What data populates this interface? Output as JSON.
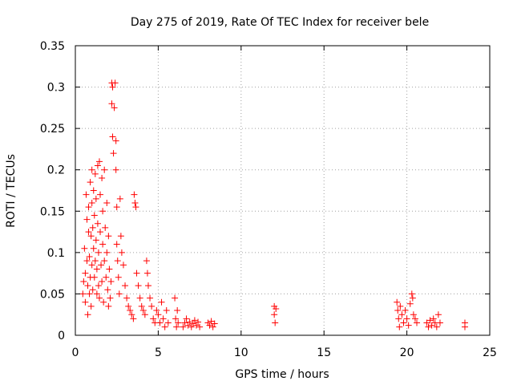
{
  "chart_data": {
    "type": "scatter",
    "title": "Day 275 of 2019, Rate Of TEC Index for receiver bele",
    "xlabel": "GPS time / hours",
    "ylabel": "ROTI / TECUs",
    "xlim": [
      0,
      25
    ],
    "ylim": [
      0,
      0.35
    ],
    "grid": true,
    "marker": "plus",
    "color": "#ff0000",
    "x_ticks": [
      {
        "value": 0,
        "label": "0"
      },
      {
        "value": 5,
        "label": "5"
      },
      {
        "value": 10,
        "label": "10"
      },
      {
        "value": 15,
        "label": "15"
      },
      {
        "value": 20,
        "label": "20"
      },
      {
        "value": 25,
        "label": "25"
      }
    ],
    "y_ticks": [
      {
        "value": 0,
        "label": "0"
      },
      {
        "value": 0.05,
        "label": "0.05"
      },
      {
        "value": 0.1,
        "label": "0.1"
      },
      {
        "value": 0.15,
        "label": "0.15"
      },
      {
        "value": 0.2,
        "label": "0.2"
      },
      {
        "value": 0.25,
        "label": "0.25"
      },
      {
        "value": 0.3,
        "label": "0.3"
      },
      {
        "value": 0.35,
        "label": "0.35"
      }
    ],
    "series": [
      {
        "name": "ROTI",
        "points": [
          [
            0.45,
            0.05
          ],
          [
            0.5,
            0.065
          ],
          [
            0.55,
            0.105
          ],
          [
            0.6,
            0.04
          ],
          [
            0.6,
            0.075
          ],
          [
            0.65,
            0.17
          ],
          [
            0.7,
            0.14
          ],
          [
            0.7,
            0.09
          ],
          [
            0.75,
            0.06
          ],
          [
            0.75,
            0.025
          ],
          [
            0.8,
            0.125
          ],
          [
            0.8,
            0.155
          ],
          [
            0.85,
            0.05
          ],
          [
            0.85,
            0.095
          ],
          [
            0.9,
            0.185
          ],
          [
            0.9,
            0.07
          ],
          [
            0.95,
            0.12
          ],
          [
            0.95,
            0.035
          ],
          [
            1.0,
            0.2
          ],
          [
            1.0,
            0.16
          ],
          [
            1.0,
            0.085
          ],
          [
            1.05,
            0.13
          ],
          [
            1.05,
            0.055
          ],
          [
            1.1,
            0.175
          ],
          [
            1.1,
            0.105
          ],
          [
            1.15,
            0.145
          ],
          [
            1.15,
            0.07
          ],
          [
            1.2,
            0.195
          ],
          [
            1.2,
            0.09
          ],
          [
            1.25,
            0.165
          ],
          [
            1.25,
            0.115
          ],
          [
            1.3,
            0.05
          ],
          [
            1.3,
            0.08
          ],
          [
            1.35,
            0.205
          ],
          [
            1.35,
            0.135
          ],
          [
            1.4,
            0.1
          ],
          [
            1.4,
            0.06
          ],
          [
            1.45,
            0.21
          ],
          [
            1.45,
            0.045
          ],
          [
            1.5,
            0.17
          ],
          [
            1.5,
            0.125
          ],
          [
            1.55,
            0.085
          ],
          [
            1.6,
            0.19
          ],
          [
            1.6,
            0.065
          ],
          [
            1.65,
            0.15
          ],
          [
            1.65,
            0.11
          ],
          [
            1.7,
            0.04
          ],
          [
            1.75,
            0.2
          ],
          [
            1.75,
            0.09
          ],
          [
            1.8,
            0.13
          ],
          [
            1.85,
            0.07
          ],
          [
            1.9,
            0.16
          ],
          [
            1.9,
            0.1
          ],
          [
            1.95,
            0.055
          ],
          [
            2.0,
            0.12
          ],
          [
            2.0,
            0.035
          ],
          [
            2.05,
            0.08
          ],
          [
            2.1,
            0.045
          ],
          [
            2.15,
            0.065
          ],
          [
            2.2,
            0.305
          ],
          [
            2.2,
            0.28
          ],
          [
            2.25,
            0.3
          ],
          [
            2.25,
            0.24
          ],
          [
            2.3,
            0.22
          ],
          [
            2.35,
            0.275
          ],
          [
            2.4,
            0.305
          ],
          [
            2.45,
            0.235
          ],
          [
            2.45,
            0.2
          ],
          [
            2.5,
            0.155
          ],
          [
            2.5,
            0.11
          ],
          [
            2.55,
            0.09
          ],
          [
            2.6,
            0.07
          ],
          [
            2.65,
            0.05
          ],
          [
            2.7,
            0.165
          ],
          [
            2.75,
            0.12
          ],
          [
            2.8,
            0.1
          ],
          [
            2.9,
            0.085
          ],
          [
            3.0,
            0.06
          ],
          [
            3.1,
            0.045
          ],
          [
            3.2,
            0.035
          ],
          [
            3.3,
            0.03
          ],
          [
            3.4,
            0.025
          ],
          [
            3.5,
            0.02
          ],
          [
            3.55,
            0.17
          ],
          [
            3.6,
            0.16
          ],
          [
            3.65,
            0.155
          ],
          [
            3.7,
            0.075
          ],
          [
            3.8,
            0.06
          ],
          [
            3.9,
            0.045
          ],
          [
            4.0,
            0.035
          ],
          [
            4.1,
            0.03
          ],
          [
            4.2,
            0.025
          ],
          [
            4.3,
            0.09
          ],
          [
            4.35,
            0.075
          ],
          [
            4.4,
            0.06
          ],
          [
            4.5,
            0.045
          ],
          [
            4.6,
            0.035
          ],
          [
            4.7,
            0.02
          ],
          [
            4.8,
            0.015
          ],
          [
            4.9,
            0.03
          ],
          [
            5.0,
            0.025
          ],
          [
            5.1,
            0.015
          ],
          [
            5.2,
            0.04
          ],
          [
            5.3,
            0.02
          ],
          [
            5.4,
            0.01
          ],
          [
            5.5,
            0.03
          ],
          [
            5.6,
            0.015
          ],
          [
            6.0,
            0.045
          ],
          [
            6.05,
            0.02
          ],
          [
            6.1,
            0.01
          ],
          [
            6.15,
            0.03
          ],
          [
            6.2,
            0.015
          ],
          [
            6.5,
            0.01
          ],
          [
            6.6,
            0.015
          ],
          [
            6.7,
            0.02
          ],
          [
            6.8,
            0.012
          ],
          [
            6.9,
            0.016
          ],
          [
            7.0,
            0.01
          ],
          [
            7.1,
            0.014
          ],
          [
            7.2,
            0.018
          ],
          [
            7.3,
            0.012
          ],
          [
            7.4,
            0.016
          ],
          [
            7.5,
            0.01
          ],
          [
            8.0,
            0.015
          ],
          [
            8.1,
            0.012
          ],
          [
            8.2,
            0.017
          ],
          [
            8.3,
            0.01
          ],
          [
            8.4,
            0.014
          ],
          [
            12.0,
            0.035
          ],
          [
            12.0,
            0.025
          ],
          [
            12.05,
            0.015
          ],
          [
            12.1,
            0.032
          ],
          [
            19.4,
            0.04
          ],
          [
            19.45,
            0.03
          ],
          [
            19.5,
            0.02
          ],
          [
            19.55,
            0.01
          ],
          [
            19.6,
            0.035
          ],
          [
            19.7,
            0.025
          ],
          [
            19.8,
            0.015
          ],
          [
            19.9,
            0.03
          ],
          [
            20.0,
            0.02
          ],
          [
            20.1,
            0.012
          ],
          [
            20.2,
            0.038
          ],
          [
            20.3,
            0.05
          ],
          [
            20.35,
            0.045
          ],
          [
            20.4,
            0.025
          ],
          [
            20.5,
            0.02
          ],
          [
            20.6,
            0.015
          ],
          [
            21.2,
            0.015
          ],
          [
            21.3,
            0.01
          ],
          [
            21.4,
            0.018
          ],
          [
            21.5,
            0.012
          ],
          [
            21.6,
            0.02
          ],
          [
            21.7,
            0.015
          ],
          [
            21.8,
            0.01
          ],
          [
            21.9,
            0.025
          ],
          [
            22.0,
            0.015
          ],
          [
            23.5,
            0.015
          ],
          [
            23.5,
            0.01
          ]
        ]
      }
    ]
  }
}
